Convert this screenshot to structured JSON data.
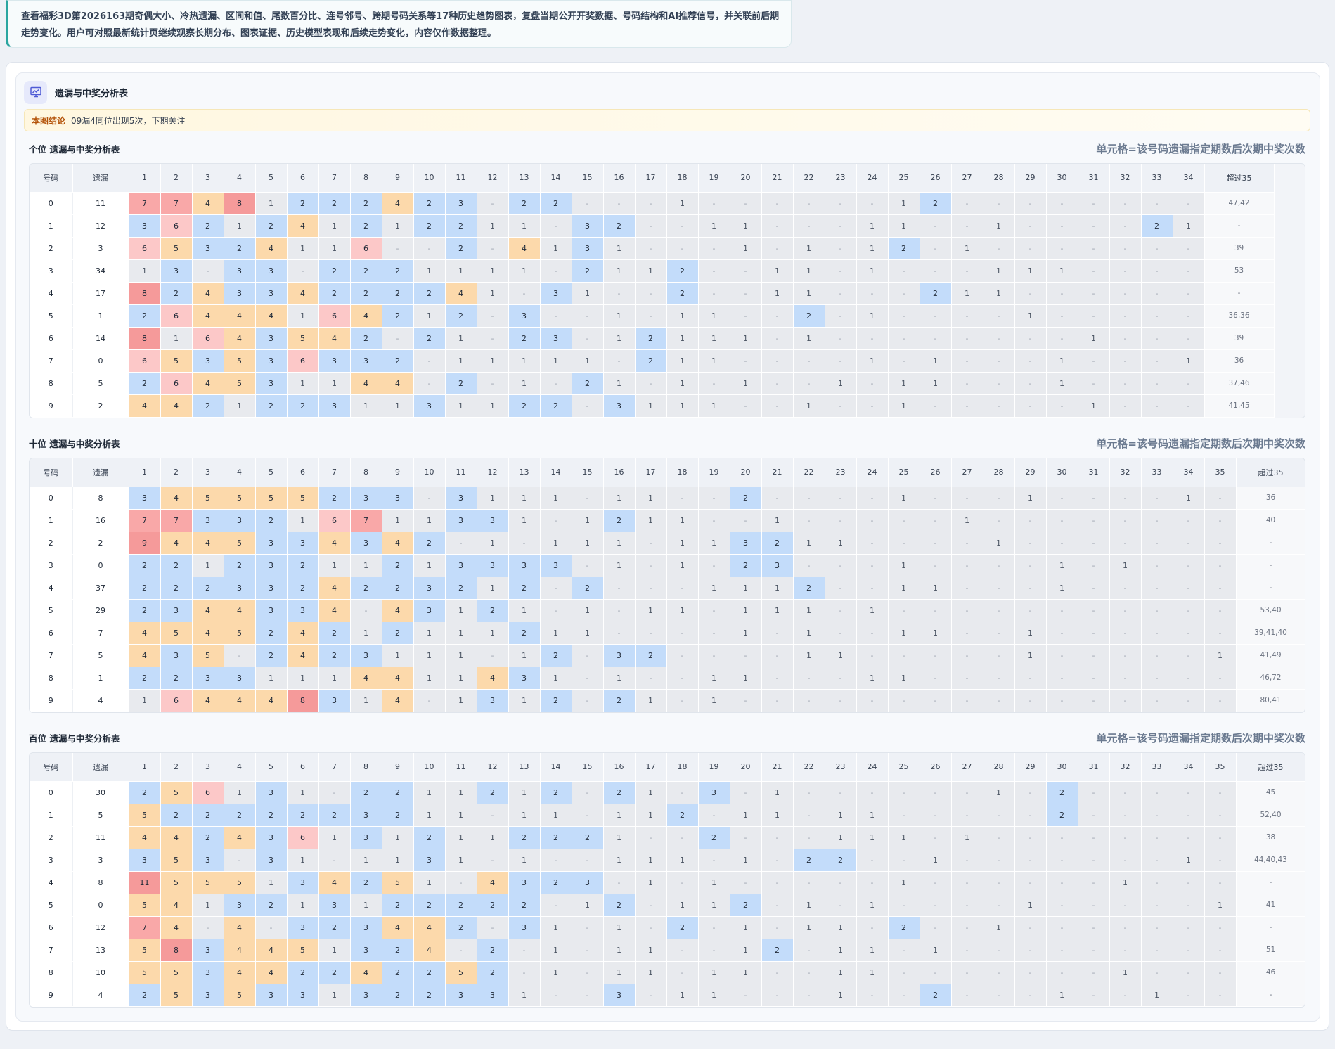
{
  "intro_text": "查看福彩3D第2026163期奇偶大小、冷热遗漏、区间和值、尾数百分比、连号邻号、跨期号码关系等17种历史趋势图表，复盘当期公开开奖数据、号码结构和AI推荐信号，并关联前后期走势变化。用户可对照最新统计页继续观察长期分布、图表证据、历史模型表现和后续走势变化，内容仅作数据整理。",
  "panel": {
    "title": "遗漏与中奖分析表",
    "icon": "chart-icon",
    "conclusion_label": "本图结论",
    "conclusion_text": "09漏4同位出现5次，下期关注"
  },
  "sections": [
    {
      "title": "个位 遗漏与中奖分析表",
      "note": "单元格=该号码遗漏指定期数后次期中奖次数",
      "headers": [
        "号码",
        "遗漏",
        "1",
        "2",
        "3",
        "4",
        "5",
        "6",
        "7",
        "8",
        "9",
        "10",
        "11",
        "12",
        "13",
        "14",
        "15",
        "16",
        "17",
        "18",
        "19",
        "20",
        "21",
        "22",
        "23",
        "24",
        "25",
        "26",
        "27",
        "28",
        "29",
        "30",
        "31",
        "32",
        "33",
        "34",
        "超过35"
      ],
      "rows": [
        [
          "0",
          "11",
          "7",
          "7",
          "4",
          "8",
          "1",
          "2",
          "2",
          "2",
          "4",
          "2",
          "3",
          "-",
          "2",
          "2",
          "-",
          "-",
          "-",
          "1",
          "-",
          "-",
          "-",
          "-",
          "-",
          "-",
          "1",
          "2",
          "-",
          "-",
          "-",
          "-",
          "-",
          "-",
          "-",
          "-",
          "47,42"
        ],
        [
          "1",
          "12",
          "3",
          "6",
          "2",
          "1",
          "2",
          "4",
          "1",
          "2",
          "1",
          "2",
          "2",
          "1",
          "1",
          "-",
          "3",
          "2",
          "-",
          "-",
          "1",
          "1",
          "-",
          "-",
          "-",
          "1",
          "1",
          "-",
          "-",
          "1",
          "-",
          "-",
          "-",
          "-",
          "2",
          "1",
          "-"
        ],
        [
          "2",
          "3",
          "6",
          "5",
          "3",
          "2",
          "4",
          "1",
          "1",
          "6",
          "-",
          "-",
          "2",
          "-",
          "4",
          "1",
          "3",
          "1",
          "-",
          "-",
          "-",
          "1",
          "-",
          "1",
          "-",
          "1",
          "2",
          "-",
          "1",
          "-",
          "-",
          "-",
          "-",
          "-",
          "-",
          "-",
          "39"
        ],
        [
          "3",
          "34",
          "1",
          "3",
          "-",
          "3",
          "3",
          "-",
          "2",
          "2",
          "2",
          "1",
          "1",
          "1",
          "1",
          "-",
          "2",
          "1",
          "1",
          "2",
          "-",
          "-",
          "1",
          "1",
          "-",
          "1",
          "-",
          "-",
          "-",
          "1",
          "1",
          "1",
          "-",
          "-",
          "-",
          "-",
          "53"
        ],
        [
          "4",
          "17",
          "8",
          "2",
          "4",
          "3",
          "3",
          "4",
          "2",
          "2",
          "2",
          "2",
          "4",
          "1",
          "-",
          "3",
          "1",
          "-",
          "-",
          "2",
          "-",
          "-",
          "1",
          "1",
          "-",
          "-",
          "-",
          "2",
          "1",
          "1",
          "-",
          "-",
          "-",
          "-",
          "-",
          "-",
          "-"
        ],
        [
          "5",
          "1",
          "2",
          "6",
          "4",
          "4",
          "4",
          "1",
          "6",
          "4",
          "2",
          "1",
          "2",
          "-",
          "3",
          "-",
          "-",
          "1",
          "-",
          "1",
          "1",
          "-",
          "-",
          "2",
          "-",
          "1",
          "-",
          "-",
          "-",
          "-",
          "1",
          "-",
          "-",
          "-",
          "-",
          "-",
          "36,36"
        ],
        [
          "6",
          "14",
          "8",
          "1",
          "6",
          "4",
          "3",
          "5",
          "4",
          "2",
          "-",
          "2",
          "1",
          "-",
          "2",
          "3",
          "-",
          "1",
          "2",
          "1",
          "1",
          "1",
          "-",
          "1",
          "-",
          "-",
          "-",
          "-",
          "-",
          "-",
          "-",
          "-",
          "1",
          "-",
          "-",
          "-",
          "39"
        ],
        [
          "7",
          "0",
          "6",
          "5",
          "3",
          "5",
          "3",
          "6",
          "3",
          "3",
          "2",
          "-",
          "1",
          "1",
          "1",
          "1",
          "1",
          "-",
          "2",
          "1",
          "1",
          "-",
          "-",
          "-",
          "-",
          "1",
          "-",
          "1",
          "-",
          "-",
          "-",
          "1",
          "-",
          "-",
          "-",
          "1",
          "36"
        ],
        [
          "8",
          "5",
          "2",
          "6",
          "4",
          "5",
          "3",
          "1",
          "1",
          "4",
          "4",
          "-",
          "2",
          "-",
          "1",
          "-",
          "2",
          "1",
          "-",
          "1",
          "-",
          "1",
          "-",
          "-",
          "1",
          "-",
          "1",
          "1",
          "-",
          "-",
          "-",
          "1",
          "-",
          "-",
          "-",
          "-",
          "37,46"
        ],
        [
          "9",
          "2",
          "4",
          "4",
          "2",
          "1",
          "2",
          "2",
          "3",
          "1",
          "1",
          "3",
          "1",
          "1",
          "2",
          "2",
          "-",
          "3",
          "1",
          "1",
          "1",
          "-",
          "-",
          "1",
          "-",
          "-",
          "1",
          "-",
          "-",
          "-",
          "-",
          "-",
          "1",
          "-",
          "-",
          "-",
          "41,45"
        ]
      ]
    },
    {
      "title": "十位 遗漏与中奖分析表",
      "note": "单元格=该号码遗漏指定期数后次期中奖次数",
      "headers": [
        "号码",
        "遗漏",
        "1",
        "2",
        "3",
        "4",
        "5",
        "6",
        "7",
        "8",
        "9",
        "10",
        "11",
        "12",
        "13",
        "14",
        "15",
        "16",
        "17",
        "18",
        "19",
        "20",
        "21",
        "22",
        "23",
        "24",
        "25",
        "26",
        "27",
        "28",
        "29",
        "30",
        "31",
        "32",
        "33",
        "34",
        "35",
        "超过35"
      ],
      "rows": [
        [
          "0",
          "8",
          "3",
          "4",
          "5",
          "5",
          "5",
          "5",
          "2",
          "3",
          "3",
          "-",
          "3",
          "1",
          "1",
          "1",
          "-",
          "1",
          "1",
          "-",
          "-",
          "2",
          "-",
          "-",
          "-",
          "-",
          "1",
          "-",
          "-",
          "-",
          "1",
          "-",
          "-",
          "-",
          "-",
          "1",
          "-",
          "36"
        ],
        [
          "1",
          "16",
          "7",
          "7",
          "3",
          "3",
          "2",
          "1",
          "6",
          "7",
          "1",
          "1",
          "3",
          "3",
          "1",
          "-",
          "1",
          "2",
          "1",
          "1",
          "-",
          "-",
          "1",
          "-",
          "-",
          "-",
          "-",
          "-",
          "1",
          "-",
          "-",
          "-",
          "-",
          "-",
          "-",
          "-",
          "-",
          "40"
        ],
        [
          "2",
          "2",
          "9",
          "4",
          "4",
          "5",
          "3",
          "3",
          "4",
          "3",
          "4",
          "2",
          "-",
          "1",
          "-",
          "1",
          "1",
          "1",
          "-",
          "1",
          "1",
          "3",
          "2",
          "1",
          "1",
          "-",
          "-",
          "-",
          "-",
          "1",
          "-",
          "-",
          "-",
          "-",
          "-",
          "-",
          "-",
          "-"
        ],
        [
          "3",
          "0",
          "2",
          "2",
          "1",
          "2",
          "3",
          "2",
          "1",
          "1",
          "2",
          "1",
          "3",
          "3",
          "3",
          "3",
          "-",
          "1",
          "-",
          "1",
          "-",
          "2",
          "3",
          "-",
          "-",
          "-",
          "1",
          "-",
          "-",
          "-",
          "-",
          "1",
          "-",
          "1",
          "-",
          "-",
          "-",
          "-"
        ],
        [
          "4",
          "37",
          "2",
          "2",
          "2",
          "3",
          "3",
          "2",
          "4",
          "2",
          "2",
          "3",
          "2",
          "1",
          "2",
          "-",
          "2",
          "-",
          "-",
          "-",
          "1",
          "1",
          "1",
          "2",
          "-",
          "-",
          "1",
          "1",
          "-",
          "-",
          "-",
          "1",
          "-",
          "-",
          "-",
          "-",
          "-",
          "-"
        ],
        [
          "5",
          "29",
          "2",
          "3",
          "4",
          "4",
          "3",
          "3",
          "4",
          "-",
          "4",
          "3",
          "1",
          "2",
          "1",
          "-",
          "1",
          "-",
          "1",
          "1",
          "-",
          "1",
          "1",
          "1",
          "-",
          "1",
          "-",
          "-",
          "-",
          "-",
          "-",
          "-",
          "-",
          "-",
          "-",
          "-",
          "-",
          "53,40"
        ],
        [
          "6",
          "7",
          "4",
          "5",
          "4",
          "5",
          "2",
          "4",
          "2",
          "1",
          "2",
          "1",
          "1",
          "1",
          "2",
          "1",
          "1",
          "-",
          "-",
          "-",
          "-",
          "1",
          "-",
          "1",
          "-",
          "-",
          "1",
          "1",
          "-",
          "-",
          "1",
          "-",
          "-",
          "-",
          "-",
          "-",
          "-",
          "39,41,40"
        ],
        [
          "7",
          "5",
          "4",
          "3",
          "5",
          "-",
          "2",
          "4",
          "2",
          "3",
          "1",
          "1",
          "1",
          "-",
          "1",
          "2",
          "-",
          "3",
          "2",
          "-",
          "-",
          "-",
          "-",
          "1",
          "1",
          "-",
          "-",
          "-",
          "-",
          "-",
          "1",
          "-",
          "-",
          "-",
          "-",
          "-",
          "1",
          "41,49"
        ],
        [
          "8",
          "1",
          "2",
          "2",
          "3",
          "3",
          "1",
          "1",
          "1",
          "4",
          "4",
          "1",
          "1",
          "4",
          "3",
          "1",
          "-",
          "1",
          "-",
          "-",
          "1",
          "1",
          "-",
          "-",
          "-",
          "1",
          "1",
          "-",
          "-",
          "-",
          "-",
          "-",
          "-",
          "-",
          "-",
          "-",
          "-",
          "46,72"
        ],
        [
          "9",
          "4",
          "1",
          "6",
          "4",
          "4",
          "4",
          "8",
          "3",
          "1",
          "4",
          "-",
          "1",
          "3",
          "1",
          "2",
          "-",
          "2",
          "1",
          "-",
          "1",
          "-",
          "-",
          "-",
          "-",
          "-",
          "-",
          "-",
          "-",
          "-",
          "-",
          "-",
          "-",
          "-",
          "-",
          "-",
          "-",
          "80,41"
        ]
      ]
    },
    {
      "title": "百位 遗漏与中奖分析表",
      "note": "单元格=该号码遗漏指定期数后次期中奖次数",
      "headers": [
        "号码",
        "遗漏",
        "1",
        "2",
        "3",
        "4",
        "5",
        "6",
        "7",
        "8",
        "9",
        "10",
        "11",
        "12",
        "13",
        "14",
        "15",
        "16",
        "17",
        "18",
        "19",
        "20",
        "21",
        "22",
        "23",
        "24",
        "25",
        "26",
        "27",
        "28",
        "29",
        "30",
        "31",
        "32",
        "33",
        "34",
        "35",
        "超过35"
      ],
      "rows": [
        [
          "0",
          "30",
          "2",
          "5",
          "6",
          "1",
          "3",
          "1",
          "-",
          "2",
          "2",
          "1",
          "1",
          "2",
          "1",
          "2",
          "-",
          "2",
          "1",
          "-",
          "3",
          "-",
          "1",
          "-",
          "-",
          "-",
          "-",
          "-",
          "-",
          "1",
          "-",
          "2",
          "-",
          "-",
          "-",
          "-",
          "-",
          "45"
        ],
        [
          "1",
          "5",
          "5",
          "2",
          "2",
          "2",
          "2",
          "2",
          "2",
          "3",
          "2",
          "1",
          "1",
          "-",
          "1",
          "1",
          "-",
          "1",
          "1",
          "2",
          "-",
          "1",
          "1",
          "-",
          "1",
          "1",
          "-",
          "-",
          "-",
          "-",
          "-",
          "2",
          "-",
          "-",
          "-",
          "-",
          "-",
          "52,40"
        ],
        [
          "2",
          "11",
          "4",
          "4",
          "2",
          "4",
          "3",
          "6",
          "1",
          "3",
          "1",
          "2",
          "1",
          "1",
          "2",
          "2",
          "2",
          "1",
          "-",
          "-",
          "2",
          "-",
          "-",
          "-",
          "1",
          "1",
          "1",
          "-",
          "1",
          "-",
          "-",
          "-",
          "-",
          "-",
          "-",
          "-",
          "-",
          "38"
        ],
        [
          "3",
          "3",
          "3",
          "5",
          "3",
          "-",
          "3",
          "1",
          "-",
          "1",
          "1",
          "3",
          "1",
          "-",
          "1",
          "-",
          "-",
          "1",
          "1",
          "1",
          "-",
          "1",
          "-",
          "2",
          "2",
          "-",
          "-",
          "1",
          "-",
          "-",
          "-",
          "-",
          "-",
          "-",
          "-",
          "1",
          "-",
          "44,40,43"
        ],
        [
          "4",
          "8",
          "11",
          "5",
          "5",
          "5",
          "1",
          "3",
          "4",
          "2",
          "5",
          "1",
          "-",
          "4",
          "3",
          "2",
          "3",
          "-",
          "1",
          "-",
          "1",
          "-",
          "-",
          "-",
          "-",
          "-",
          "1",
          "-",
          "-",
          "-",
          "-",
          "-",
          "-",
          "1",
          "-",
          "-",
          "-",
          "-"
        ],
        [
          "5",
          "0",
          "5",
          "4",
          "1",
          "3",
          "2",
          "1",
          "3",
          "1",
          "2",
          "2",
          "2",
          "2",
          "2",
          "-",
          "1",
          "2",
          "-",
          "1",
          "1",
          "2",
          "-",
          "1",
          "-",
          "1",
          "-",
          "-",
          "-",
          "-",
          "1",
          "-",
          "-",
          "-",
          "-",
          "-",
          "1",
          "41"
        ],
        [
          "6",
          "12",
          "7",
          "4",
          "-",
          "4",
          "-",
          "3",
          "2",
          "3",
          "4",
          "4",
          "2",
          "-",
          "3",
          "1",
          "-",
          "1",
          "-",
          "2",
          "-",
          "1",
          "-",
          "1",
          "1",
          "-",
          "2",
          "-",
          "-",
          "1",
          "-",
          "-",
          "-",
          "-",
          "-",
          "-",
          "-",
          "-"
        ],
        [
          "7",
          "13",
          "5",
          "8",
          "3",
          "4",
          "4",
          "5",
          "1",
          "3",
          "2",
          "4",
          "-",
          "2",
          "-",
          "1",
          "-",
          "1",
          "1",
          "-",
          "-",
          "1",
          "2",
          "-",
          "1",
          "1",
          "-",
          "1",
          "-",
          "-",
          "-",
          "-",
          "-",
          "-",
          "-",
          "-",
          "-",
          "51"
        ],
        [
          "8",
          "10",
          "5",
          "5",
          "3",
          "4",
          "4",
          "2",
          "2",
          "4",
          "2",
          "2",
          "5",
          "2",
          "-",
          "1",
          "-",
          "1",
          "1",
          "-",
          "1",
          "1",
          "-",
          "-",
          "1",
          "1",
          "-",
          "-",
          "-",
          "-",
          "-",
          "-",
          "-",
          "1",
          "-",
          "-",
          "-",
          "46"
        ],
        [
          "9",
          "4",
          "2",
          "5",
          "3",
          "5",
          "3",
          "3",
          "1",
          "3",
          "2",
          "2",
          "3",
          "3",
          "1",
          "-",
          "-",
          "3",
          "-",
          "1",
          "1",
          "-",
          "-",
          "-",
          "1",
          "-",
          "-",
          "2",
          "-",
          "-",
          "-",
          "1",
          "-",
          "-",
          "1",
          "-",
          "-",
          "-"
        ]
      ]
    }
  ]
}
